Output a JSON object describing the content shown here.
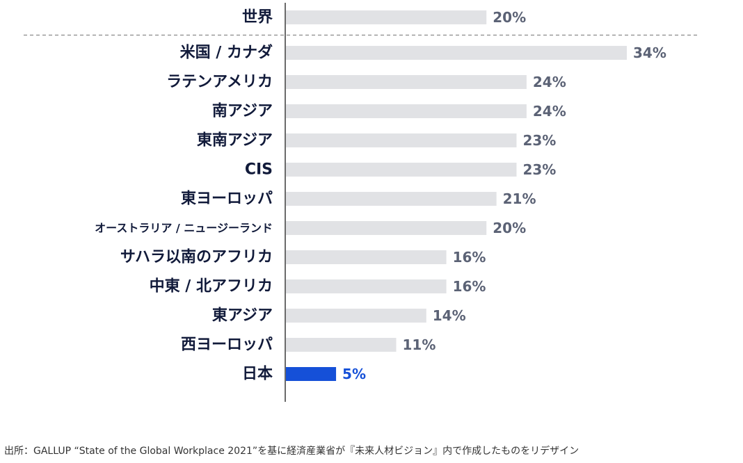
{
  "chart_data": {
    "type": "bar",
    "orientation": "horizontal",
    "categories": [
      "世界",
      "米国 / カナダ",
      "ラテンアメリカ",
      "南アジア",
      "東南アジア",
      "CIS",
      "東ヨーロッパ",
      "オーストラリア / ニュージーランド",
      "サハラ以南のアフリカ",
      "中東 / 北アフリカ",
      "東アジア",
      "西ヨーロッパ",
      "日本"
    ],
    "values": [
      20,
      34,
      24,
      24,
      23,
      23,
      21,
      20,
      16,
      16,
      14,
      11,
      5
    ],
    "value_labels": [
      "20%",
      "34%",
      "24%",
      "24%",
      "23%",
      "23%",
      "21%",
      "20%",
      "16%",
      "16%",
      "14%",
      "11%",
      "5%"
    ],
    "highlight": "日本",
    "colors": {
      "bar": "#e1e2e5",
      "highlight": "#1550d8",
      "label": "#111a3a",
      "value": "#5b6275"
    },
    "separator_after": "世界",
    "xlim": [
      0,
      34
    ],
    "grid": false
  },
  "source": "出所：GALLUP “State of the Global Workplace 2021”を基に経済産業省が『未来人材ビジョン』内で作成したものをリデザイン"
}
